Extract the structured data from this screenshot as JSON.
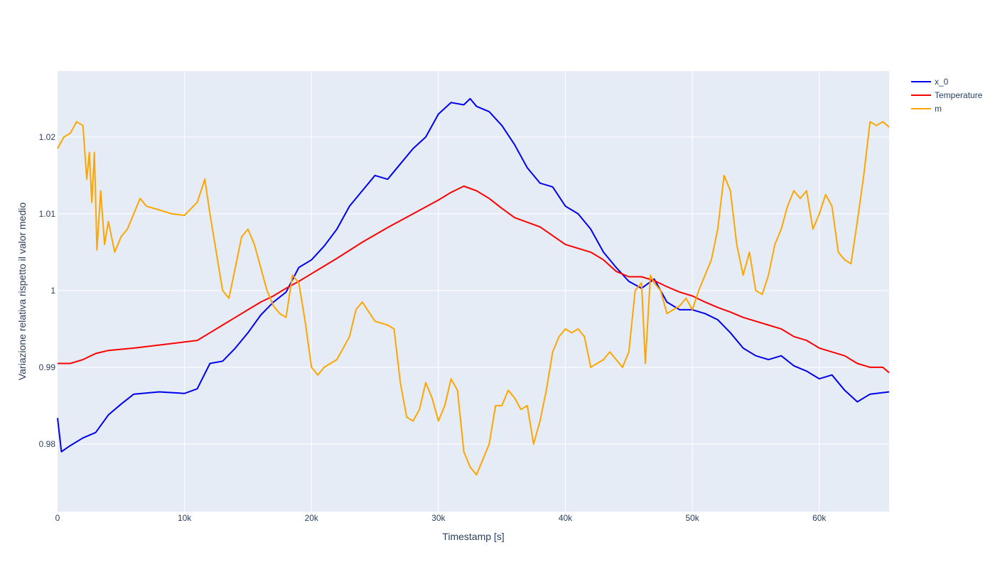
{
  "chart_data": {
    "type": "line",
    "xlabel": "Timestamp [s]",
    "ylabel": "Variazione relativa rispetto il valor medio",
    "xlim": [
      0,
      65500
    ],
    "ylim": [
      0.9712,
      1.0286
    ],
    "x_ticks": [
      0,
      10000,
      20000,
      30000,
      40000,
      50000,
      60000
    ],
    "x_tick_labels": [
      "0",
      "10k",
      "20k",
      "30k",
      "40k",
      "50k",
      "60k"
    ],
    "y_ticks": [
      0.98,
      0.99,
      1.0,
      1.01,
      1.02
    ],
    "y_tick_labels": [
      "0.98",
      "0.99",
      "1",
      "1.01",
      "1.02"
    ],
    "grid": true,
    "legend_position": "top-right, outside plot area",
    "plot_background": "#e5ecf6",
    "series": [
      {
        "name": "x_0",
        "color": "#0000ee",
        "points": [
          [
            0,
            0.9834
          ],
          [
            300,
            0.979
          ],
          [
            1000,
            0.9798
          ],
          [
            2000,
            0.9808
          ],
          [
            3000,
            0.9815
          ],
          [
            4000,
            0.9838
          ],
          [
            5000,
            0.9852
          ],
          [
            6000,
            0.9865
          ],
          [
            8000,
            0.9868
          ],
          [
            10000,
            0.9866
          ],
          [
            11000,
            0.9872
          ],
          [
            12000,
            0.9905
          ],
          [
            13000,
            0.9908
          ],
          [
            14000,
            0.9925
          ],
          [
            15000,
            0.9945
          ],
          [
            16000,
            0.9968
          ],
          [
            17000,
            0.9985
          ],
          [
            18000,
            0.9998
          ],
          [
            19000,
            1.003
          ],
          [
            20000,
            1.004
          ],
          [
            21000,
            1.0058
          ],
          [
            22000,
            1.008
          ],
          [
            23000,
            1.011
          ],
          [
            24000,
            1.013
          ],
          [
            25000,
            1.015
          ],
          [
            26000,
            1.0145
          ],
          [
            27000,
            1.0165
          ],
          [
            28000,
            1.0185
          ],
          [
            29000,
            1.02
          ],
          [
            30000,
            1.023
          ],
          [
            31000,
            1.0245
          ],
          [
            32000,
            1.0242
          ],
          [
            32500,
            1.025
          ],
          [
            33000,
            1.024
          ],
          [
            34000,
            1.0233
          ],
          [
            35000,
            1.0215
          ],
          [
            36000,
            1.019
          ],
          [
            37000,
            1.016
          ],
          [
            38000,
            1.014
          ],
          [
            39000,
            1.0135
          ],
          [
            40000,
            1.011
          ],
          [
            41000,
            1.01
          ],
          [
            42000,
            1.008
          ],
          [
            43000,
            1.005
          ],
          [
            44000,
            1.003
          ],
          [
            45000,
            1.0012
          ],
          [
            46000,
            1.0003
          ],
          [
            47000,
            1.0015
          ],
          [
            48000,
            0.9985
          ],
          [
            49000,
            0.9975
          ],
          [
            50000,
            0.9975
          ],
          [
            51000,
            0.997
          ],
          [
            52000,
            0.9962
          ],
          [
            53000,
            0.9945
          ],
          [
            54000,
            0.9925
          ],
          [
            55000,
            0.9915
          ],
          [
            56000,
            0.991
          ],
          [
            57000,
            0.9915
          ],
          [
            58000,
            0.9902
          ],
          [
            59000,
            0.9895
          ],
          [
            60000,
            0.9885
          ],
          [
            61000,
            0.989
          ],
          [
            62000,
            0.987
          ],
          [
            63000,
            0.9855
          ],
          [
            64000,
            0.9865
          ],
          [
            65500,
            0.9868
          ]
        ]
      },
      {
        "name": "Temperature",
        "color": "#ff0000",
        "points": [
          [
            0,
            0.9905
          ],
          [
            1000,
            0.9905
          ],
          [
            2000,
            0.991
          ],
          [
            3000,
            0.9918
          ],
          [
            4000,
            0.9922
          ],
          [
            6000,
            0.9925
          ],
          [
            8000,
            0.9929
          ],
          [
            10000,
            0.9933
          ],
          [
            11000,
            0.9935
          ],
          [
            12000,
            0.9945
          ],
          [
            13000,
            0.9955
          ],
          [
            14000,
            0.9965
          ],
          [
            15000,
            0.9975
          ],
          [
            16000,
            0.9985
          ],
          [
            17000,
            0.9993
          ],
          [
            18000,
            1.0003
          ],
          [
            19000,
            1.0012
          ],
          [
            20000,
            1.0022
          ],
          [
            22000,
            1.0042
          ],
          [
            24000,
            1.0063
          ],
          [
            26000,
            1.0082
          ],
          [
            28000,
            1.01
          ],
          [
            30000,
            1.0118
          ],
          [
            31000,
            1.0128
          ],
          [
            32000,
            1.0136
          ],
          [
            33000,
            1.013
          ],
          [
            34000,
            1.012
          ],
          [
            35000,
            1.0107
          ],
          [
            36000,
            1.0095
          ],
          [
            38000,
            1.0083
          ],
          [
            40000,
            1.006
          ],
          [
            42000,
            1.005
          ],
          [
            43000,
            1.004
          ],
          [
            44000,
            1.0025
          ],
          [
            45000,
            1.0018
          ],
          [
            46000,
            1.0018
          ],
          [
            47000,
            1.0013
          ],
          [
            48000,
            1.0005
          ],
          [
            49000,
            0.9998
          ],
          [
            50000,
            0.9993
          ],
          [
            51000,
            0.9985
          ],
          [
            52000,
            0.9978
          ],
          [
            53000,
            0.9972
          ],
          [
            54000,
            0.9965
          ],
          [
            55000,
            0.996
          ],
          [
            56000,
            0.9955
          ],
          [
            57000,
            0.995
          ],
          [
            58000,
            0.994
          ],
          [
            59000,
            0.9935
          ],
          [
            60000,
            0.9925
          ],
          [
            61000,
            0.992
          ],
          [
            62000,
            0.9915
          ],
          [
            63000,
            0.9905
          ],
          [
            64000,
            0.99
          ],
          [
            65000,
            0.99
          ],
          [
            65500,
            0.9893
          ]
        ]
      },
      {
        "name": "m",
        "color": "#ffa500",
        "points": [
          [
            0,
            1.0185
          ],
          [
            500,
            1.02
          ],
          [
            1000,
            1.0205
          ],
          [
            1500,
            1.022
          ],
          [
            2000,
            1.0215
          ],
          [
            2300,
            1.0145
          ],
          [
            2500,
            1.018
          ],
          [
            2700,
            1.0115
          ],
          [
            2900,
            1.018
          ],
          [
            3100,
            1.0053
          ],
          [
            3400,
            1.013
          ],
          [
            3700,
            1.006
          ],
          [
            4000,
            1.009
          ],
          [
            4500,
            1.005
          ],
          [
            5000,
            1.007
          ],
          [
            5500,
            1.008
          ],
          [
            6000,
            1.01
          ],
          [
            6500,
            1.012
          ],
          [
            7000,
            1.011
          ],
          [
            8000,
            1.0105
          ],
          [
            9000,
            1.01
          ],
          [
            10000,
            1.0098
          ],
          [
            11000,
            1.0115
          ],
          [
            11600,
            1.0145
          ],
          [
            12000,
            1.01
          ],
          [
            12500,
            1.005
          ],
          [
            13000,
            1.0
          ],
          [
            13500,
            0.999
          ],
          [
            14000,
            1.003
          ],
          [
            14500,
            1.007
          ],
          [
            15000,
            1.008
          ],
          [
            15500,
            1.006
          ],
          [
            16000,
            1.003
          ],
          [
            16500,
            1.0
          ],
          [
            17000,
            0.998
          ],
          [
            17500,
            0.997
          ],
          [
            18000,
            0.9965
          ],
          [
            18500,
            1.002
          ],
          [
            19000,
            1.001
          ],
          [
            19500,
            0.996
          ],
          [
            20000,
            0.99
          ],
          [
            20500,
            0.989
          ],
          [
            21000,
            0.99
          ],
          [
            21500,
            0.9905
          ],
          [
            22000,
            0.991
          ],
          [
            23000,
            0.994
          ],
          [
            23500,
            0.9975
          ],
          [
            24000,
            0.9985
          ],
          [
            25000,
            0.996
          ],
          [
            26000,
            0.9955
          ],
          [
            26500,
            0.995
          ],
          [
            27000,
            0.988
          ],
          [
            27500,
            0.9835
          ],
          [
            28000,
            0.983
          ],
          [
            28500,
            0.9845
          ],
          [
            29000,
            0.988
          ],
          [
            29500,
            0.986
          ],
          [
            30000,
            0.983
          ],
          [
            30500,
            0.985
          ],
          [
            31000,
            0.9885
          ],
          [
            31500,
            0.987
          ],
          [
            32000,
            0.979
          ],
          [
            32500,
            0.977
          ],
          [
            33000,
            0.976
          ],
          [
            33500,
            0.978
          ],
          [
            34000,
            0.98
          ],
          [
            34500,
            0.985
          ],
          [
            35000,
            0.985
          ],
          [
            35500,
            0.987
          ],
          [
            36000,
            0.986
          ],
          [
            36500,
            0.9845
          ],
          [
            37000,
            0.985
          ],
          [
            37500,
            0.98
          ],
          [
            38000,
            0.983
          ],
          [
            38500,
            0.987
          ],
          [
            39000,
            0.992
          ],
          [
            39500,
            0.994
          ],
          [
            40000,
            0.995
          ],
          [
            40500,
            0.9945
          ],
          [
            41000,
            0.995
          ],
          [
            41500,
            0.994
          ],
          [
            42000,
            0.99
          ],
          [
            42500,
            0.9905
          ],
          [
            43000,
            0.991
          ],
          [
            43500,
            0.992
          ],
          [
            44000,
            0.991
          ],
          [
            44500,
            0.99
          ],
          [
            45000,
            0.992
          ],
          [
            45500,
            1.0
          ],
          [
            46000,
            1.001
          ],
          [
            46300,
            0.9905
          ],
          [
            46700,
            1.002
          ],
          [
            47000,
            1.001
          ],
          [
            47500,
            1.0
          ],
          [
            48000,
            0.997
          ],
          [
            48500,
            0.9975
          ],
          [
            49000,
            0.998
          ],
          [
            49500,
            0.999
          ],
          [
            50000,
            0.9975
          ],
          [
            50500,
            1.0
          ],
          [
            51000,
            1.002
          ],
          [
            51500,
            1.004
          ],
          [
            52000,
            1.008
          ],
          [
            52500,
            1.015
          ],
          [
            53000,
            1.013
          ],
          [
            53500,
            1.006
          ],
          [
            54000,
            1.002
          ],
          [
            54500,
            1.005
          ],
          [
            55000,
            1.0
          ],
          [
            55500,
            0.9995
          ],
          [
            56000,
            1.002
          ],
          [
            56500,
            1.006
          ],
          [
            57000,
            1.008
          ],
          [
            57500,
            1.011
          ],
          [
            58000,
            1.013
          ],
          [
            58500,
            1.012
          ],
          [
            59000,
            1.013
          ],
          [
            59500,
            1.008
          ],
          [
            60000,
            1.01
          ],
          [
            60500,
            1.0125
          ],
          [
            61000,
            1.011
          ],
          [
            61500,
            1.005
          ],
          [
            62000,
            1.004
          ],
          [
            62500,
            1.0035
          ],
          [
            63000,
            1.009
          ],
          [
            63500,
            1.015
          ],
          [
            64000,
            1.022
          ],
          [
            64500,
            1.0215
          ],
          [
            65000,
            1.022
          ],
          [
            65500,
            1.0213
          ]
        ]
      }
    ]
  }
}
